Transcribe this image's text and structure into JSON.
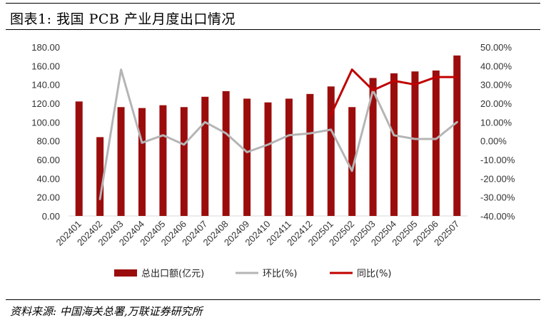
{
  "header": {
    "title": "图表1:  我国 PCB 产业月度出口情况"
  },
  "footer": {
    "source": "资料来源:  中国海关总署,万联证券研究所"
  },
  "chart_data": {
    "type": "bar+line",
    "title": "",
    "categories": [
      "202401",
      "202402",
      "202403",
      "202404",
      "202405",
      "202406",
      "202407",
      "202408",
      "202409",
      "202410",
      "202411",
      "202412",
      "202501",
      "202502",
      "202503",
      "202504",
      "202505",
      "202506",
      "202507"
    ],
    "left_axis": {
      "min": 0,
      "max": 180,
      "step": 20,
      "tick_labels": [
        "0.00",
        "20.00",
        "40.00",
        "60.00",
        "80.00",
        "100.00",
        "120.00",
        "140.00",
        "160.00",
        "180.00"
      ]
    },
    "right_axis": {
      "min": -40,
      "max": 50,
      "step": 10,
      "tick_labels": [
        "-40.00%",
        "-30.00%",
        "-20.00%",
        "-10.00%",
        "0.00%",
        "10.00%",
        "20.00%",
        "30.00%",
        "40.00%",
        "50.00%"
      ]
    },
    "series": [
      {
        "name": "总出口额(亿元)",
        "type": "bar",
        "axis": "left",
        "color": "#9B0D0D",
        "values": [
          122,
          84,
          116,
          115,
          118,
          116,
          127,
          133,
          125,
          121,
          125,
          130,
          138,
          116,
          147,
          152,
          154,
          155,
          171
        ]
      },
      {
        "name": "环比(%)",
        "type": "line",
        "axis": "right",
        "color": "#B5B5B5",
        "values": [
          null,
          -31,
          38,
          -1,
          3,
          -2,
          10,
          4,
          -6,
          -2,
          3,
          4,
          6,
          -16,
          27,
          3,
          1,
          1,
          10
        ]
      },
      {
        "name": "同比(%)",
        "type": "line",
        "axis": "right",
        "color": "#C00000",
        "values": [
          null,
          null,
          null,
          null,
          null,
          null,
          null,
          null,
          null,
          null,
          null,
          null,
          14,
          38,
          27,
          32,
          30,
          34,
          34
        ]
      }
    ],
    "legend_position": "bottom",
    "grid": false
  }
}
